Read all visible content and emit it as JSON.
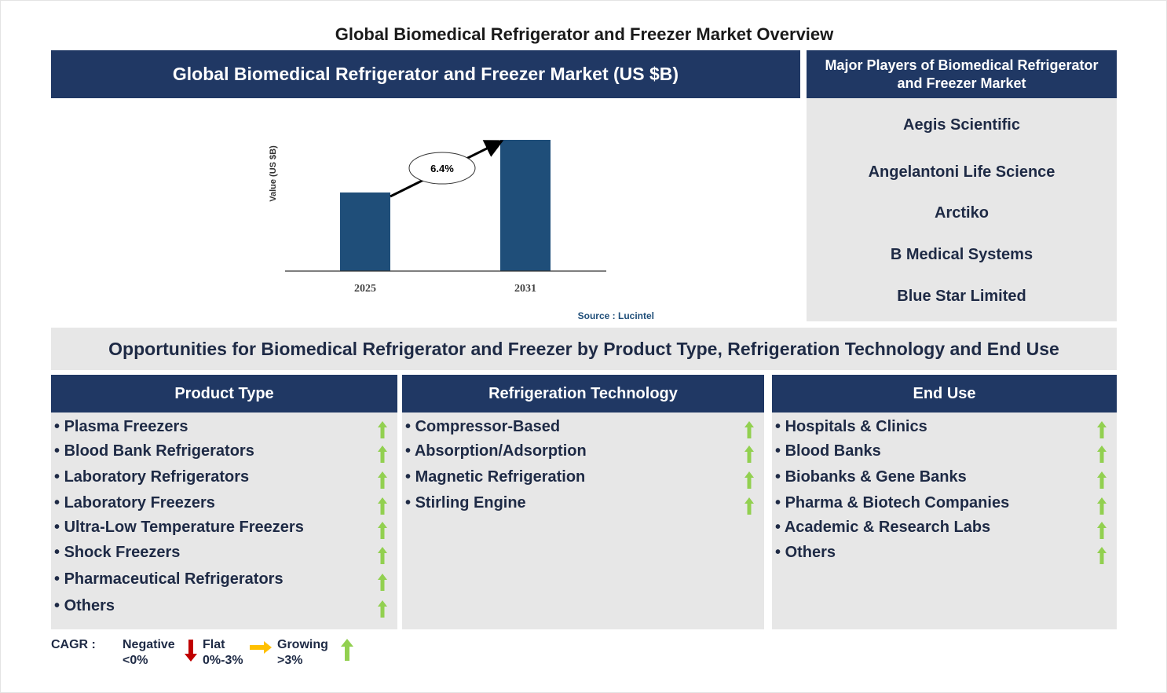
{
  "title": "Global Biomedical Refrigerator and Freezer Market Overview",
  "chart_panel": {
    "header": "Global Biomedical Refrigerator and Freezer Market (US $B)",
    "source": "Source : Lucintel"
  },
  "chart_data": {
    "type": "bar",
    "categories": [
      "2025",
      "2031"
    ],
    "values": [
      null,
      null
    ],
    "ylabel": "Value (US $B)",
    "annotation": "6.4%",
    "bar_color": "#1f4e79",
    "grid": false,
    "axes_ticks_y": false
  },
  "players": {
    "header": "Major Players of Biomedical Refrigerator and Freezer Market",
    "items": [
      "Aegis Scientific",
      "Angelantoni Life Science",
      "Arctiko",
      "B Medical Systems",
      "Blue Star Limited"
    ]
  },
  "opportunities": {
    "header": "Opportunities for Biomedical Refrigerator and Freezer by Product Type, Refrigeration Technology and End Use",
    "columns": [
      {
        "title": "Product Type",
        "items": [
          "Plasma Freezers",
          "Blood Bank Refrigerators",
          "Laboratory Refrigerators",
          "Laboratory Freezers",
          "Ultra-Low Temperature Freezers",
          "Shock Freezers",
          "Pharmaceutical Refrigerators",
          "Others"
        ],
        "trend": "growing"
      },
      {
        "title": "Refrigeration Technology",
        "items": [
          "Compressor-Based",
          "Absorption/Adsorption",
          "Magnetic Refrigeration",
          "Stirling Engine"
        ],
        "trend": "growing"
      },
      {
        "title": "End Use",
        "items": [
          "Hospitals & Clinics",
          "Blood Banks",
          "Biobanks & Gene Banks",
          "Pharma & Biotech Companies",
          "Academic & Research Labs",
          "Others"
        ],
        "trend": "growing"
      }
    ]
  },
  "legend": {
    "label": "CAGR :",
    "negative": "Negative",
    "negative_range": "<0%",
    "flat": "Flat",
    "flat_range": "0%-3%",
    "growing": "Growing",
    "growing_range": ">3%",
    "colors": {
      "negative": "#c00000",
      "flat": "#ffc000",
      "growing": "#92d050"
    }
  }
}
